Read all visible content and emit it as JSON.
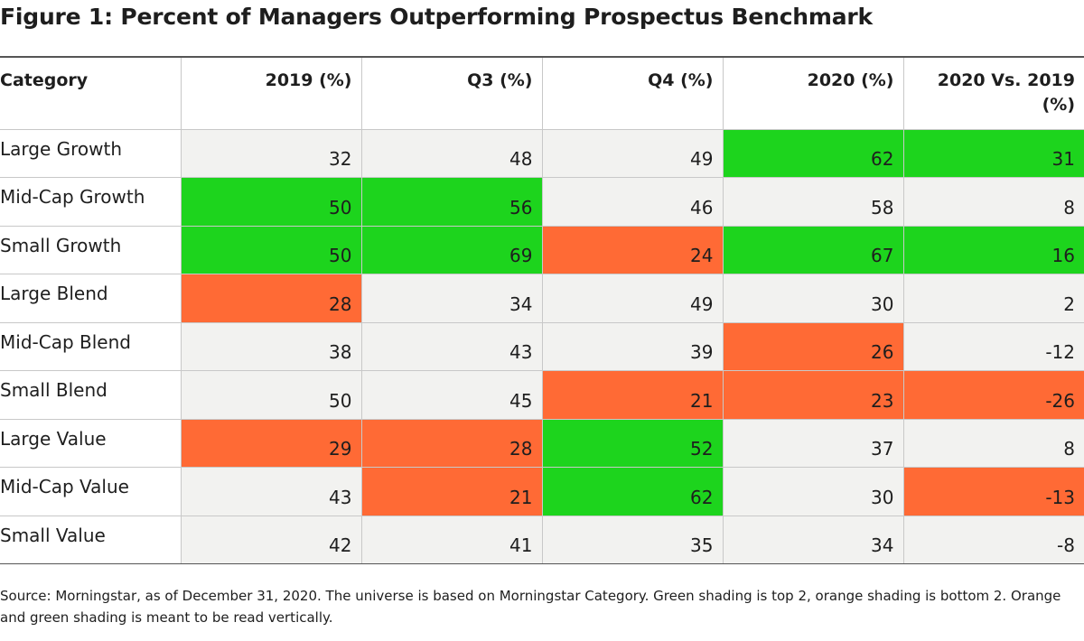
{
  "title": "Figure 1: Percent of Managers Outperforming Prospectus Benchmark",
  "source_note": "Source: Morningstar, as of December 31, 2020. The universe is based on Morningstar Category. Green shading is top 2, orange shading is bottom 2. Orange and green shading is meant to be read vertically.",
  "colors": {
    "green": "#1dd41d",
    "orange": "#ff6a35",
    "cell_bg": "#f2f2f0"
  },
  "chart_data": {
    "type": "table",
    "title": "Figure 1: Percent of Managers Outperforming Prospectus Benchmark",
    "columns": [
      "Category",
      "2019 (%)",
      "Q3 (%)",
      "Q4 (%)",
      "2020 (%)",
      "2020 Vs. 2019 (%)"
    ],
    "rows": [
      {
        "category": "Large Growth",
        "values": [
          "32",
          "48",
          "49",
          "62",
          "31"
        ],
        "highlight": [
          null,
          null,
          null,
          "green",
          "green"
        ]
      },
      {
        "category": "Mid-Cap Growth",
        "values": [
          "50",
          "56",
          "46",
          "58",
          "8"
        ],
        "highlight": [
          "green",
          "green",
          null,
          null,
          null
        ]
      },
      {
        "category": "Small Growth",
        "values": [
          "50",
          "69",
          "24",
          "67",
          "16"
        ],
        "highlight": [
          "green",
          "green",
          "orange",
          "green",
          "green"
        ]
      },
      {
        "category": "Large Blend",
        "values": [
          "28",
          "34",
          "49",
          "30",
          "2"
        ],
        "highlight": [
          "orange",
          null,
          null,
          null,
          null
        ]
      },
      {
        "category": "Mid-Cap Blend",
        "values": [
          "38",
          "43",
          "39",
          "26",
          "-12"
        ],
        "highlight": [
          null,
          null,
          null,
          "orange",
          null
        ]
      },
      {
        "category": "Small Blend",
        "values": [
          "50",
          "45",
          "21",
          "23",
          "-26"
        ],
        "highlight": [
          null,
          null,
          "orange",
          "orange",
          "orange"
        ]
      },
      {
        "category": "Large Value",
        "values": [
          "29",
          "28",
          "52",
          "37",
          "8"
        ],
        "highlight": [
          "orange",
          "orange",
          "green",
          null,
          null
        ]
      },
      {
        "category": "Mid-Cap Value",
        "values": [
          "43",
          "21",
          "62",
          "30",
          "-13"
        ],
        "highlight": [
          null,
          "orange",
          "green",
          null,
          "orange"
        ]
      },
      {
        "category": "Small Value",
        "values": [
          "42",
          "41",
          "35",
          "34",
          "-8"
        ],
        "highlight": [
          null,
          null,
          null,
          null,
          null
        ]
      }
    ]
  }
}
